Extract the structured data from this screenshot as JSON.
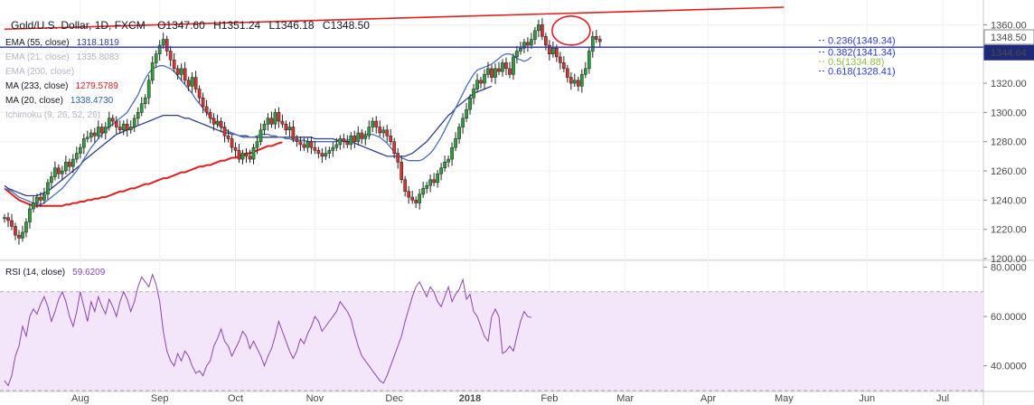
{
  "header": {
    "symbol": "Gold/U.S. Dollar, 1D, FXCM",
    "open": "O1347.60",
    "high": "H1351.24",
    "low": "L1346.18",
    "close": "C1348.50"
  },
  "indicators": [
    {
      "name": "EMA (55, close)",
      "value": "1318.1819",
      "color": "#2c3e8c",
      "dim": false
    },
    {
      "name": "EMA (21, close)",
      "value": "1335.8083",
      "color": "#9aa0b8",
      "dim": true
    },
    {
      "name": "EMA (200, close)",
      "value": "",
      "color": "#9aa0b8",
      "dim": true
    },
    {
      "name": "MA (233, close)",
      "value": "1279.5789",
      "color": "#e01f1f",
      "dim": false
    },
    {
      "name": "MA (20, close)",
      "value": "1338.4730",
      "color": "#2c5fa8",
      "dim": false
    },
    {
      "name": "Ichimoku (9, 26, 52, 26)",
      "value": "",
      "color": "#9aa0b8",
      "dim": true
    }
  ],
  "price_badges": [
    {
      "label": "1348.50",
      "value": 1348.5,
      "bg": "#ffffff",
      "fg": "#131722",
      "border": "#888888"
    },
    {
      "label": "1344.64",
      "value": 1344.64,
      "bg": "#1e2a78",
      "fg": "#ffffff",
      "border": "#1e2a78"
    }
  ],
  "fib_levels": [
    {
      "label": "0.236(1349.34)",
      "value": 1349.34,
      "color": "#2c3ec8"
    },
    {
      "label": "0.382(1341.34)",
      "value": 1341.34,
      "color": "#2c3ec8"
    },
    {
      "label": "0.5(1334.88)",
      "value": 1334.88,
      "color": "#8fbf4a"
    },
    {
      "label": "0.618(1328.41)",
      "value": 1328.41,
      "color": "#2c3ec8"
    }
  ],
  "rsi": {
    "label": "RSI (14, close)",
    "value": "59.6209",
    "color": "#8e44ad",
    "ylim": [
      30,
      82
    ],
    "band": [
      30,
      70
    ],
    "ticks": [
      {
        "label": "80.0000",
        "value": 80
      },
      {
        "label": "60.0000",
        "value": 60
      },
      {
        "label": "40.0000",
        "value": 40
      }
    ],
    "values": [
      34,
      32,
      36,
      44,
      48,
      56,
      52,
      60,
      63,
      61,
      65,
      68,
      64,
      58,
      62,
      67,
      70,
      66,
      60,
      56,
      62,
      70,
      64,
      58,
      66,
      62,
      68,
      64,
      61,
      67,
      64,
      60,
      66,
      70,
      67,
      62,
      66,
      72,
      76,
      74,
      72,
      77,
      73,
      66,
      54,
      46,
      42,
      40,
      45,
      42,
      46,
      44,
      40,
      37,
      38,
      36,
      40,
      42,
      48,
      51,
      55,
      50,
      48,
      44,
      47,
      50,
      54,
      52,
      47,
      50,
      47,
      44,
      40,
      44,
      47,
      52,
      58,
      54,
      50,
      46,
      43,
      46,
      51,
      49,
      53,
      56,
      60,
      58,
      54,
      56,
      58,
      60,
      62,
      66,
      64,
      62,
      59,
      53,
      48,
      44,
      42,
      40,
      38,
      36,
      34,
      33,
      36,
      40,
      44,
      48,
      52,
      58,
      63,
      68,
      72,
      74,
      71,
      68,
      72,
      70,
      66,
      64,
      68,
      72,
      66,
      69,
      71,
      75,
      67,
      69,
      62,
      60,
      56,
      52,
      50,
      60,
      63,
      60,
      45,
      46,
      48,
      46,
      52,
      58,
      62,
      60,
      59.6
    ]
  },
  "chart_data": {
    "type": "candlestick",
    "title": "Gold/U.S. Dollar, 1D, FXCM",
    "ylim": [
      1200,
      1372
    ],
    "y_ticks": [
      {
        "label": "1360.00",
        "value": 1360
      },
      {
        "label": "1340.00",
        "value": 1340
      },
      {
        "label": "1320.00",
        "value": 1320
      },
      {
        "label": "1300.00",
        "value": 1300
      },
      {
        "label": "1280.00",
        "value": 1280
      },
      {
        "label": "1260.00",
        "value": 1260
      },
      {
        "label": "1240.00",
        "value": 1240
      },
      {
        "label": "1220.00",
        "value": 1220
      },
      {
        "label": "1200.00",
        "value": 1200
      }
    ],
    "x_ticks": [
      {
        "label": "Aug",
        "value": 21,
        "bold": false
      },
      {
        "label": "Sep",
        "value": 43,
        "bold": false
      },
      {
        "label": "Oct",
        "value": 64,
        "bold": false
      },
      {
        "label": "Nov",
        "value": 86,
        "bold": false
      },
      {
        "label": "Dec",
        "value": 108,
        "bold": false
      },
      {
        "label": "2018",
        "value": 129,
        "bold": true
      },
      {
        "label": "Feb",
        "value": 151,
        "bold": false
      },
      {
        "label": "Mar",
        "value": 172,
        "bold": false
      },
      {
        "label": "Apr",
        "value": 195,
        "bold": false
      },
      {
        "label": "May",
        "value": 216,
        "bold": false
      },
      {
        "label": "Jun",
        "value": 239,
        "bold": false
      },
      {
        "label": "Jul",
        "value": 260,
        "bold": false
      }
    ],
    "xlim": [
      0,
      270
    ],
    "closes": [
      1228,
      1226,
      1222,
      1216,
      1214,
      1218,
      1225,
      1234,
      1238,
      1242,
      1240,
      1244,
      1252,
      1256,
      1262,
      1258,
      1260,
      1266,
      1263,
      1268,
      1272,
      1276,
      1282,
      1283,
      1286,
      1284,
      1290,
      1286,
      1290,
      1296,
      1294,
      1290,
      1288,
      1292,
      1288,
      1290,
      1296,
      1300,
      1306,
      1310,
      1322,
      1334,
      1340,
      1346,
      1350,
      1342,
      1336,
      1330,
      1326,
      1330,
      1322,
      1318,
      1324,
      1316,
      1310,
      1304,
      1300,
      1296,
      1292,
      1294,
      1290,
      1284,
      1282,
      1276,
      1274,
      1268,
      1272,
      1270,
      1268,
      1276,
      1280,
      1288,
      1292,
      1296,
      1292,
      1300,
      1294,
      1292,
      1288,
      1290,
      1282,
      1280,
      1278,
      1276,
      1280,
      1276,
      1274,
      1272,
      1270,
      1272,
      1274,
      1276,
      1278,
      1282,
      1280,
      1278,
      1284,
      1280,
      1286,
      1282,
      1284,
      1290,
      1294,
      1290,
      1286,
      1288,
      1284,
      1280,
      1272,
      1266,
      1254,
      1246,
      1242,
      1240,
      1238,
      1244,
      1248,
      1250,
      1254,
      1252,
      1258,
      1262,
      1266,
      1268,
      1276,
      1282,
      1290,
      1296,
      1302,
      1310,
      1316,
      1322,
      1320,
      1326,
      1330,
      1324,
      1330,
      1328,
      1334,
      1330,
      1326,
      1338,
      1342,
      1344,
      1348,
      1346,
      1350,
      1356,
      1360,
      1352,
      1346,
      1340,
      1344,
      1338,
      1334,
      1330,
      1324,
      1320,
      1322,
      1318,
      1326,
      1330,
      1342,
      1352,
      1350,
      1348.5
    ],
    "ma20": [
      1248,
      1247,
      1246,
      1244,
      1242,
      1241,
      1240,
      1239,
      1238,
      1237,
      1237,
      1238,
      1240,
      1242,
      1244,
      1246,
      1248,
      1251,
      1254,
      1257,
      1260,
      1264,
      1268,
      1272,
      1276,
      1279,
      1282,
      1285,
      1288,
      1290,
      1292,
      1294,
      1296,
      1298,
      1300,
      1304,
      1308,
      1312,
      1318,
      1323,
      1327,
      1330,
      1331,
      1332,
      1332,
      1331,
      1330,
      1328,
      1325,
      1322,
      1319,
      1316,
      1313,
      1309,
      1306,
      1303,
      1300,
      1297,
      1294,
      1292,
      1290,
      1289,
      1287,
      1286,
      1285,
      1284,
      1283,
      1283,
      1283,
      1283,
      1284,
      1285,
      1285,
      1285,
      1284,
      1284,
      1283,
      1283,
      1282,
      1282,
      1281,
      1281,
      1281,
      1281,
      1280,
      1280,
      1280,
      1280,
      1280,
      1280,
      1280,
      1280,
      1280,
      1281,
      1281,
      1281,
      1282,
      1282,
      1283,
      1284,
      1285,
      1285,
      1285,
      1284,
      1283,
      1281,
      1279,
      1276,
      1273,
      1271,
      1269,
      1268,
      1267,
      1267,
      1267,
      1267,
      1268,
      1270,
      1272,
      1275,
      1279,
      1283,
      1288,
      1293,
      1298,
      1303,
      1308,
      1313,
      1318,
      1322,
      1326,
      1329,
      1330,
      1331,
      1332,
      1333,
      1335,
      1337,
      1339,
      1340,
      1340,
      1339,
      1337,
      1336,
      1335,
      1336,
      1338
    ],
    "ema55": [
      1250,
      1248,
      1247,
      1246,
      1245,
      1244,
      1243,
      1243,
      1243,
      1243,
      1244,
      1245,
      1246,
      1248,
      1250,
      1252,
      1254,
      1256,
      1258,
      1260,
      1262,
      1264,
      1267,
      1269,
      1271,
      1273,
      1275,
      1277,
      1279,
      1281,
      1283,
      1285,
      1286,
      1287,
      1288,
      1289,
      1290,
      1291,
      1292,
      1293,
      1294,
      1295,
      1296,
      1297,
      1298,
      1298,
      1298,
      1298,
      1298,
      1297,
      1296,
      1296,
      1295,
      1294,
      1293,
      1292,
      1291,
      1290,
      1289,
      1288,
      1287,
      1286,
      1286,
      1285,
      1285,
      1284,
      1284,
      1284,
      1283,
      1283,
      1283,
      1283,
      1283,
      1283,
      1283,
      1283,
      1283,
      1283,
      1283,
      1283,
      1283,
      1283,
      1283,
      1283,
      1283,
      1283,
      1282,
      1282,
      1282,
      1282,
      1282,
      1282,
      1281,
      1281,
      1280,
      1280,
      1280,
      1279,
      1278,
      1277,
      1276,
      1275,
      1274,
      1273,
      1272,
      1271,
      1270,
      1270,
      1270,
      1270,
      1270,
      1270,
      1271,
      1272,
      1274,
      1276,
      1278,
      1280,
      1283,
      1286,
      1289,
      1292,
      1295,
      1298,
      1300,
      1303,
      1305,
      1307,
      1309,
      1311,
      1313,
      1314,
      1315,
      1316,
      1317,
      1318
    ],
    "ma233": [
      1248,
      1246,
      1244,
      1242,
      1240,
      1239,
      1238,
      1237,
      1236,
      1236,
      1236,
      1236,
      1236,
      1236,
      1236,
      1236,
      1236,
      1237,
      1237,
      1238,
      1238,
      1239,
      1239,
      1240,
      1240,
      1241,
      1241,
      1242,
      1242,
      1243,
      1244,
      1245,
      1246,
      1246,
      1247,
      1248,
      1248,
      1249,
      1250,
      1251,
      1251,
      1252,
      1253,
      1254,
      1255,
      1255,
      1256,
      1257,
      1258,
      1259,
      1259,
      1260,
      1261,
      1262,
      1263,
      1263,
      1264,
      1264,
      1265,
      1266,
      1267,
      1267,
      1268,
      1269,
      1269,
      1270,
      1271,
      1272,
      1272,
      1273,
      1274,
      1275,
      1276,
      1277,
      1277,
      1278,
      1279,
      1279.6
    ],
    "channel_line": {
      "x1": 0,
      "y1": 1357,
      "x2": 216,
      "y2": 1372
    },
    "blue_line": 1344.64,
    "circle": {
      "x": 157,
      "y": 1356
    }
  }
}
